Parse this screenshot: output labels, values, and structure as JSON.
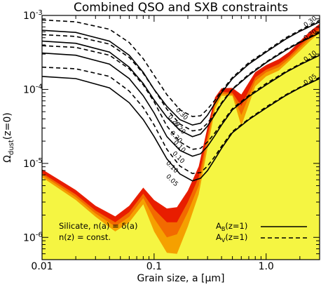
{
  "chart_data": {
    "type": "area",
    "title": "Combined QSO and SXB constraints",
    "xlabel": "Grain size, a [μm]",
    "ylabel_main": "Ω",
    "ylabel_sub": "dust",
    "ylabel_tail": "(z=0)",
    "x_scale": "log",
    "y_scale": "log",
    "xlim": [
      0.01,
      3.0
    ],
    "ylim": [
      5e-07,
      0.001
    ],
    "x_ticks": [
      {
        "value": 0.01,
        "label": "0.01"
      },
      {
        "value": 0.1,
        "label": "0.1"
      },
      {
        "value": 1.0,
        "label": "1.0"
      }
    ],
    "y_ticks": [
      {
        "value": 1e-06,
        "base": "10",
        "exp": "-6"
      },
      {
        "value": 1e-05,
        "base": "10",
        "exp": "-5"
      },
      {
        "value": 0.0001,
        "base": "10",
        "exp": "-4"
      },
      {
        "value": 0.001,
        "base": "10",
        "exp": "-3"
      }
    ],
    "colors": {
      "background_fill": "#f5f542",
      "band_outer": "#f5a000",
      "band_mid": "#f26a00",
      "band_inner": "#e81d00",
      "line": "#000000"
    },
    "region_bands": [
      {
        "name": "band_outer",
        "x": [
          0.01,
          0.02,
          0.03,
          0.045,
          0.06,
          0.08,
          0.1,
          0.13,
          0.16,
          0.2,
          0.25,
          0.3,
          0.35,
          0.4,
          0.5,
          0.6,
          0.8,
          1.0,
          1.3,
          1.6,
          2.0,
          2.5,
          3.0
        ],
        "y": [
          6.5e-06,
          3.2e-06,
          1.9e-06,
          1.2e-06,
          1.6e-06,
          2.8e-06,
          1.2e-06,
          6.2e-07,
          6e-07,
          1.4e-06,
          3.8e-06,
          1.6e-05,
          5.4e-05,
          8.2e-05,
          8.2e-05,
          3.2e-05,
          0.00011,
          0.00015,
          0.00018,
          0.00024,
          0.00033,
          0.00046,
          0.00058
        ]
      },
      {
        "name": "band_mid",
        "x": [
          0.01,
          0.02,
          0.03,
          0.045,
          0.06,
          0.08,
          0.1,
          0.13,
          0.16,
          0.2,
          0.25,
          0.3,
          0.35,
          0.4,
          0.5,
          0.6,
          0.8,
          1.0,
          1.3,
          1.6,
          2.0,
          2.5,
          3.0
        ],
        "y": [
          7e-06,
          3.5e-06,
          2.1e-06,
          1.4e-06,
          1.9e-06,
          3.4e-06,
          1.8e-06,
          1e-06,
          1.1e-06,
          2.2e-06,
          5e-06,
          2e-05,
          6.2e-05,
          8.8e-05,
          8.5e-05,
          4.5e-05,
          0.00013,
          0.00017,
          0.0002,
          0.00026,
          0.00036,
          0.0005,
          0.00062
        ]
      },
      {
        "name": "band_inner",
        "x": [
          0.01,
          0.02,
          0.03,
          0.045,
          0.06,
          0.08,
          0.1,
          0.13,
          0.16,
          0.2,
          0.25,
          0.3,
          0.35,
          0.4,
          0.5,
          0.6,
          0.8,
          1.0,
          1.3,
          1.6,
          2.0,
          2.5,
          3.0
        ],
        "y": [
          7.4e-06,
          3.8e-06,
          2.3e-06,
          1.6e-06,
          2.2e-06,
          3.9e-06,
          2.4e-06,
          1.6e-06,
          1.6e-06,
          3e-06,
          6.5e-06,
          2.4e-05,
          6.8e-05,
          9.3e-05,
          9e-05,
          6e-05,
          0.000145,
          0.000185,
          0.00022,
          0.00028,
          0.00039,
          0.00054,
          0.00067
        ]
      },
      {
        "name": "band_top",
        "x": [
          0.01,
          0.02,
          0.03,
          0.045,
          0.06,
          0.08,
          0.1,
          0.13,
          0.16,
          0.2,
          0.25,
          0.3,
          0.35,
          0.4,
          0.5,
          0.6,
          0.8,
          1.0,
          1.3,
          1.6,
          2.0,
          2.5,
          3.0
        ],
        "y": [
          7.8e-06,
          4.1e-06,
          2.5e-06,
          1.8e-06,
          2.5e-06,
          4.4e-06,
          3e-06,
          2.3e-06,
          2.4e-06,
          4e-06,
          8.5e-06,
          2.9e-05,
          7.3e-05,
          9.7e-05,
          9.8e-05,
          8e-05,
          0.00016,
          0.0002,
          0.00024,
          0.0003,
          0.00042,
          0.00058,
          0.00072
        ]
      }
    ],
    "series": [
      {
        "name": "A_B(z=1) 0.30",
        "style": "solid",
        "label": "0.30",
        "x": [
          0.01,
          0.02,
          0.04,
          0.06,
          0.08,
          0.1,
          0.13,
          0.17,
          0.22,
          0.26,
          0.3,
          0.35,
          0.4,
          0.5,
          0.7,
          1.0,
          1.5,
          2.0,
          3.0
        ],
        "y": [
          0.00063,
          0.00059,
          0.00045,
          0.00029,
          0.00017,
          0.0001,
          5.9e-05,
          3.9e-05,
          3.3e-05,
          3.5e-05,
          4.5e-05,
          6.5e-05,
          9e-05,
          0.00014,
          0.00022,
          0.00032,
          0.00048,
          0.00061,
          0.00082
        ]
      },
      {
        "name": "A_B(z=1) 0.20",
        "style": "solid",
        "label": "0.20",
        "x": [
          0.01,
          0.02,
          0.04,
          0.06,
          0.08,
          0.1,
          0.13,
          0.17,
          0.22,
          0.26,
          0.3,
          0.35,
          0.4,
          0.5,
          0.7,
          1.0,
          1.5,
          2.0,
          3.0
        ],
        "y": [
          0.00045,
          0.00042,
          0.00032,
          0.0002,
          0.00012,
          7.2e-05,
          4.2e-05,
          2.8e-05,
          2.3e-05,
          2.5e-05,
          3.2e-05,
          4.6e-05,
          6.4e-05,
          0.0001,
          0.000155,
          0.00023,
          0.00034,
          0.00043,
          0.00058
        ]
      },
      {
        "name": "A_B(z=1) 0.10",
        "style": "solid",
        "label": "0.10",
        "x": [
          0.01,
          0.02,
          0.04,
          0.06,
          0.08,
          0.1,
          0.13,
          0.17,
          0.22,
          0.26,
          0.3,
          0.35,
          0.4,
          0.5,
          0.7,
          1.0,
          1.5,
          2.0,
          3.0
        ],
        "y": [
          0.00031,
          0.00029,
          0.00022,
          0.00014,
          8.2e-05,
          4.8e-05,
          2.3e-05,
          1.5e-05,
          1.25e-05,
          1.35e-05,
          1.7e-05,
          2.4e-05,
          3.3e-05,
          5.3e-05,
          8e-05,
          0.000115,
          0.00017,
          0.000215,
          0.00029
        ]
      },
      {
        "name": "A_B(z=1) 0.05",
        "style": "solid",
        "label": "0.05",
        "x": [
          0.01,
          0.02,
          0.04,
          0.06,
          0.08,
          0.1,
          0.13,
          0.17,
          0.22,
          0.26,
          0.3,
          0.35,
          0.4,
          0.5,
          0.7,
          1.0,
          1.5,
          2.0,
          3.0
        ],
        "y": [
          0.00015,
          0.00014,
          0.000105,
          6.6e-05,
          3.9e-05,
          2.3e-05,
          1.15e-05,
          7.2e-06,
          5.8e-06,
          6.3e-06,
          8e-06,
          1.15e-05,
          1.6e-05,
          2.6e-05,
          3.9e-05,
          5.6e-05,
          8.3e-05,
          0.000105,
          0.00014
        ]
      },
      {
        "name": "A_V(z=1) 0.30",
        "style": "dashed",
        "label": "0.30",
        "x": [
          0.01,
          0.02,
          0.04,
          0.06,
          0.08,
          0.1,
          0.13,
          0.17,
          0.22,
          0.26,
          0.3,
          0.35,
          0.4,
          0.5,
          0.7,
          1.0,
          1.5,
          2.0,
          3.0
        ],
        "y": [
          0.00087,
          0.00082,
          0.00065,
          0.00043,
          0.00026,
          0.000155,
          8.5e-05,
          5.3e-05,
          4.3e-05,
          4.4e-05,
          5.4e-05,
          7.2e-05,
          9.5e-05,
          0.000145,
          0.00023,
          0.00033,
          0.0005,
          0.00063,
          0.00086
        ]
      },
      {
        "name": "A_V(z=1) 0.20",
        "style": "dashed",
        "label": "",
        "x": [
          0.01,
          0.02,
          0.04,
          0.06,
          0.08,
          0.1,
          0.13,
          0.17,
          0.22,
          0.26,
          0.3,
          0.35,
          0.4,
          0.5,
          0.7,
          1.0,
          1.5,
          2.0,
          3.0
        ],
        "y": [
          0.00055,
          0.00052,
          0.00041,
          0.00027,
          0.000165,
          0.0001,
          5.4e-05,
          3.4e-05,
          2.75e-05,
          2.85e-05,
          3.5e-05,
          4.8e-05,
          6.6e-05,
          0.000102,
          0.00016,
          0.000235,
          0.00035,
          0.00044,
          0.0006
        ]
      },
      {
        "name": "A_V(z=1) 0.10",
        "style": "dashed",
        "label": "",
        "x": [
          0.01,
          0.02,
          0.04,
          0.06,
          0.08,
          0.1,
          0.13,
          0.17,
          0.22,
          0.26,
          0.3,
          0.35,
          0.4,
          0.5,
          0.7,
          1.0,
          1.5,
          2.0,
          3.0
        ],
        "y": [
          0.00039,
          0.00037,
          0.00029,
          0.00019,
          0.000115,
          6.8e-05,
          3.2e-05,
          1.95e-05,
          1.55e-05,
          1.6e-05,
          1.95e-05,
          2.6e-05,
          3.5e-05,
          5.5e-05,
          8.3e-05,
          0.00012,
          0.000175,
          0.00022,
          0.0003
        ]
      },
      {
        "name": "A_V(z=1) 0.05",
        "style": "dashed",
        "label": "",
        "x": [
          0.01,
          0.02,
          0.04,
          0.06,
          0.08,
          0.1,
          0.13,
          0.17,
          0.22,
          0.26,
          0.3,
          0.35,
          0.4,
          0.5,
          0.7,
          1.0,
          1.5,
          2.0,
          3.0
        ],
        "y": [
          0.0002,
          0.00019,
          0.00015,
          9.5e-05,
          5.7e-05,
          3.3e-05,
          1.55e-05,
          9.2e-06,
          7.3e-06,
          7.5e-06,
          9.2e-06,
          1.25e-05,
          1.7e-05,
          2.7e-05,
          4e-05,
          5.8e-05,
          8.5e-05,
          0.000107,
          0.000145
        ]
      }
    ],
    "left_labels": [
      {
        "text": "0.30",
        "x": 0.155,
        "y": 5.2e-05
      },
      {
        "text": "0.20",
        "x": 0.132,
        "y": 4.2e-05
      },
      {
        "text": "0.20",
        "x": 0.148,
        "y": 3.35e-05
      },
      {
        "text": "0.20",
        "x": 0.138,
        "y": 2.55e-05
      },
      {
        "text": "0.10",
        "x": 0.148,
        "y": 1.9e-05
      },
      {
        "text": "0.10",
        "x": 0.145,
        "y": 1.35e-05
      },
      {
        "text": "0.10",
        "x": 0.127,
        "y": 1e-05
      },
      {
        "text": "0.05",
        "x": 0.127,
        "y": 6.6e-06
      }
    ],
    "right_labels": [
      {
        "text": "0.30",
        "x": 2.25,
        "y": 0.00069
      },
      {
        "text": "0.20",
        "x": 2.25,
        "y": 0.00046
      },
      {
        "text": "0.10",
        "x": 2.25,
        "y": 0.000235
      },
      {
        "text": "0.05",
        "x": 2.25,
        "y": 0.000114
      }
    ],
    "legend_text": {
      "line1": "Silicate, n(a) = δ(a)",
      "line2": "n(z) = const.",
      "solid_main": "A",
      "solid_sub": "B",
      "solid_tail": "(z=1)",
      "dashed_main": "A",
      "dashed_sub": "V",
      "dashed_tail": "(z=1)"
    },
    "legend_placement": "bottom",
    "grid": false
  }
}
